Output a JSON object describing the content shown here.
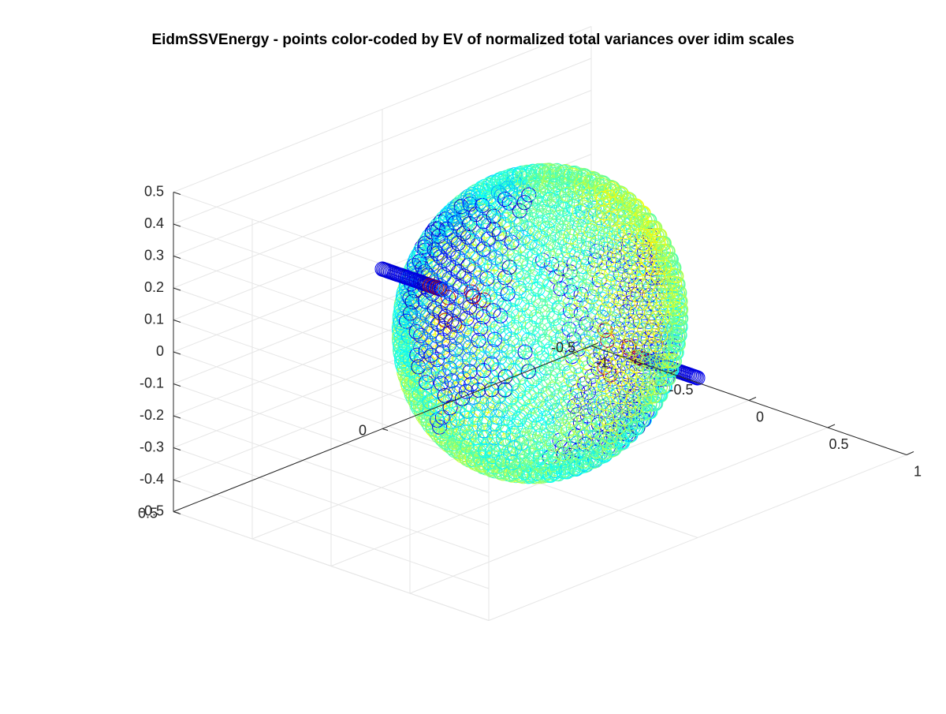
{
  "chart_data": {
    "type": "scatter",
    "subtype": "scatter3d",
    "title": "EidmSSVEnergy - points color-coded by EV of normalized total variances over idim scales",
    "xlabel": "",
    "ylabel": "",
    "zlabel": "",
    "xlim": [
      -1,
      1
    ],
    "ylim": [
      -0.5,
      0.5
    ],
    "zlim": [
      -0.5,
      0.5
    ],
    "x_ticks": [
      "-1",
      "-0.5",
      "0",
      "0.5",
      "1"
    ],
    "y_ticks": [
      "-0.5",
      "0",
      "0.5"
    ],
    "z_ticks": [
      "-0.5",
      "-0.4",
      "-0.3",
      "-0.2",
      "-0.1",
      "0",
      "0.1",
      "0.2",
      "0.3",
      "0.4",
      "0.5"
    ],
    "grid": true,
    "marker": "open-circle",
    "colormap": "jet",
    "colors": {
      "low": "#00008f",
      "mid_low": "#0f6fff",
      "mid": "#1fe3ff",
      "high": "#a00000"
    },
    "series": [
      {
        "shape": "ellipsoid-shell",
        "center": [
          0,
          0,
          0
        ],
        "semi_axes": [
          0.6,
          0.25,
          0.45
        ],
        "approx_points": 2600,
        "color_range": "blue-to-cyan"
      },
      {
        "shape": "line-segment",
        "from": [
          -1.0,
          0.0,
          0.0
        ],
        "to": [
          -0.62,
          0.0,
          0.0
        ],
        "approx_points": 45,
        "color_range": "dark-blue, red near shell"
      },
      {
        "shape": "line-segment",
        "from": [
          0.62,
          0.0,
          0.0
        ],
        "to": [
          1.0,
          0.0,
          0.0
        ],
        "approx_points": 45,
        "color_range": "dark-blue, red near shell"
      }
    ]
  }
}
